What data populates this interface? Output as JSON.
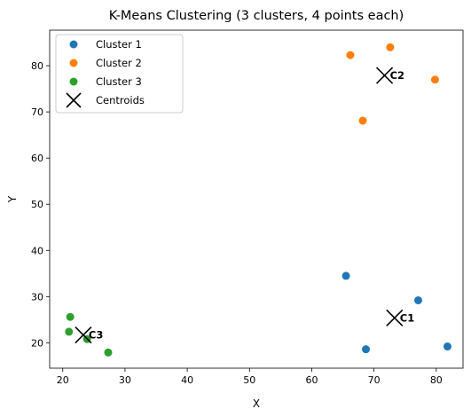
{
  "chart_data": {
    "type": "scatter",
    "title": "K-Means Clustering (3 clusters, 4 points each)",
    "xlabel": "X",
    "ylabel": "Y",
    "xlim": [
      17.9,
      84.3
    ],
    "ylim": [
      14.5,
      87.7
    ],
    "xticks": [
      20,
      30,
      40,
      50,
      60,
      70,
      80
    ],
    "yticks": [
      20,
      30,
      40,
      50,
      60,
      70,
      80
    ],
    "grid": false,
    "legend_position": "top-left",
    "series": [
      {
        "name": "Cluster 1",
        "color": "#1f77b4",
        "marker": "circle",
        "points": [
          [
            65.5,
            34.5
          ],
          [
            68.7,
            18.6
          ],
          [
            77.1,
            29.2
          ],
          [
            81.8,
            19.2
          ]
        ]
      },
      {
        "name": "Cluster 2",
        "color": "#ff7f0e",
        "marker": "circle",
        "points": [
          [
            66.2,
            82.3
          ],
          [
            72.6,
            84.0
          ],
          [
            79.8,
            77.0
          ],
          [
            68.2,
            68.1
          ]
        ]
      },
      {
        "name": "Cluster 3",
        "color": "#2ca02c",
        "marker": "circle",
        "points": [
          [
            21.2,
            25.6
          ],
          [
            21.0,
            22.4
          ],
          [
            23.9,
            20.8
          ],
          [
            27.3,
            17.9
          ]
        ]
      },
      {
        "name": "Centroids",
        "color": "#000000",
        "marker": "x",
        "points": [
          [
            73.3,
            25.4
          ],
          [
            71.7,
            77.9
          ],
          [
            23.3,
            21.7
          ]
        ]
      }
    ],
    "annotations": [
      {
        "text": "C1",
        "x": 73.3,
        "y": 25.4
      },
      {
        "text": "C2",
        "x": 71.7,
        "y": 77.9
      },
      {
        "text": "C3",
        "x": 23.3,
        "y": 21.7
      }
    ]
  }
}
